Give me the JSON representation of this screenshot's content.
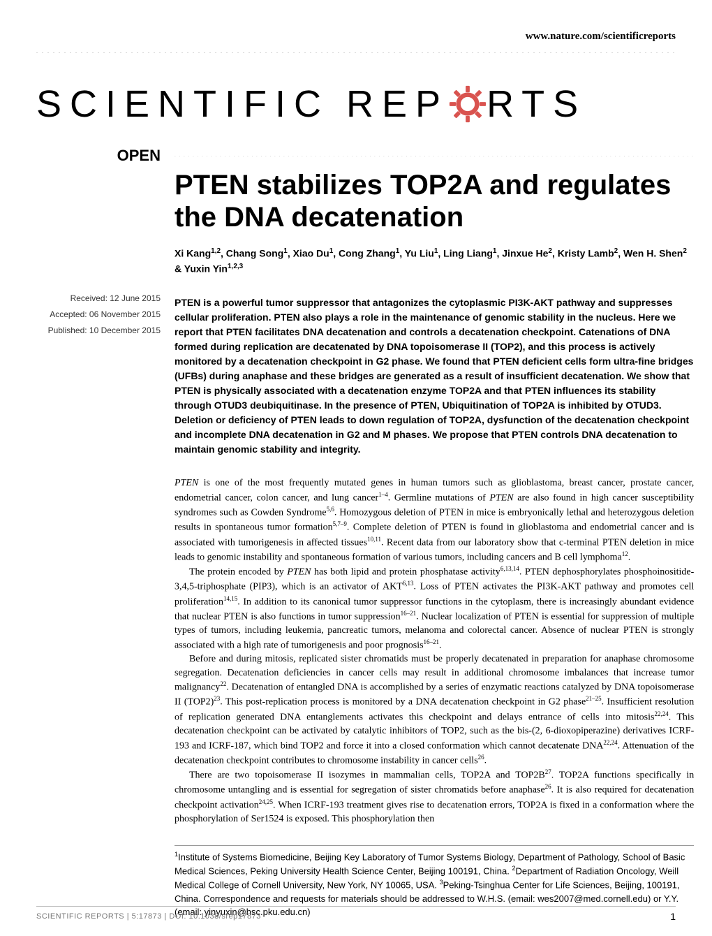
{
  "header": {
    "url": "www.nature.com/scientificreports"
  },
  "logo": {
    "text_before": "SCIENTIFIC",
    "text_rep": "REP",
    "text_rts": "RTS",
    "gear_color": "#d9534f",
    "gear_size": 58
  },
  "sidebar": {
    "open_label": "OPEN",
    "received": "Received: 12 June 2015",
    "accepted": "Accepted: 06 November 2015",
    "published": "Published: 10 December 2015"
  },
  "article": {
    "title": "PTEN stabilizes TOP2A and regulates the DNA decatenation",
    "authors_html": "Xi Kang<sup>1,2</sup>, Chang Song<sup>1</sup>, Xiao Du<sup>1</sup>, Cong Zhang<sup>1</sup>, Yu Liu<sup>1</sup>, Ling Liang<sup>1</sup>, Jinxue He<sup>2</sup>, Kristy Lamb<sup>2</sup>, Wen H. Shen<sup>2</sup> & Yuxin Yin<sup>1,2,3</sup>",
    "abstract": "PTEN is a powerful tumor suppressor that antagonizes the cytoplasmic PI3K-AKT pathway and suppresses cellular proliferation. PTEN also plays a role in the maintenance of genomic stability in the nucleus. Here we report that PTEN facilitates DNA decatenation and controls a decatenation checkpoint. Catenations of DNA formed during replication are decatenated by DNA topoisomerase II (TOP2), and this process is actively monitored by a decatenation checkpoint in G2 phase. We found that PTEN deficient cells form ultra-fine bridges (UFBs) during anaphase and these bridges are generated as a result of insufficient decatenation. We show that PTEN is physically associated with a decatenation enzyme TOP2A and that PTEN influences its stability through OTUD3 deubiquitinase. In the presence of PTEN, Ubiquitination of TOP2A is inhibited by OTUD3. Deletion or deficiency of PTEN leads to down regulation of TOP2A, dysfunction of the decatenation checkpoint and incomplete DNA decatenation in G2 and M phases. We propose that PTEN controls DNA decatenation to maintain genomic stability and integrity.",
    "body_p1_html": "<i>PTEN</i> is one of the most frequently mutated genes in human tumors such as glioblastoma, breast cancer, prostate cancer, endometrial cancer, colon cancer, and lung cancer<sup>1–4</sup>. Germline mutations of <i>PTEN</i> are also found in high cancer susceptibility syndromes such as Cowden Syndrome<sup>5,6</sup>. Homozygous deletion of PTEN in mice is embryonically lethal and heterozygous deletion results in spontaneous tumor formation<sup>5,7–9</sup>. Complete deletion of PTEN is found in glioblastoma and endometrial cancer and is associated with tumorigenesis in affected tissues<sup>10,11</sup>. Recent data from our laboratory show that c-terminal PTEN deletion in mice leads to genomic instability and spontaneous formation of various tumors, including cancers and B cell lymphoma<sup>12</sup>.",
    "body_p2_html": "The protein encoded by <i>PTEN</i> has both lipid and protein phosphatase activity<sup>6,13,14</sup>. PTEN dephosphorylates phosphoinositide-3,4,5-triphosphate (PIP3), which is an activator of AKT<sup>6,13</sup>. Loss of PTEN activates the PI3K-AKT pathway and promotes cell proliferation<sup>14,15</sup>. In addition to its canonical tumor suppressor functions in the cytoplasm, there is increasingly abundant evidence that nuclear PTEN is also functions in tumor suppression<sup>16–21</sup>. Nuclear localization of PTEN is essential for suppression of multiple types of tumors, including leukemia, pancreatic tumors, melanoma and colorectal cancer. Absence of nuclear PTEN is strongly associated with a high rate of tumorigenesis and poor prognosis<sup>16–21</sup>.",
    "body_p3_html": "Before and during mitosis, replicated sister chromatids must be properly decatenated in preparation for anaphase chromosome segregation. Decatenation deficiencies in cancer cells may result in additional chromosome imbalances that increase tumor malignancy<sup>22</sup>. Decatenation of entangled DNA is accomplished by a series of enzymatic reactions catalyzed by DNA topoisomerase II (TOP2)<sup>23</sup>. This post-replication process is monitored by a DNA decatenation checkpoint in G2 phase<sup>21–25</sup>. Insufficient resolution of replication generated DNA entanglements activates this checkpoint and delays entrance of cells into mitosis<sup>22,24</sup>. This decatenation checkpoint can be activated by catalytic inhibitors of TOP2, such as the bis-(2, 6-dioxopiperazine) derivatives ICRF-193 and ICRF-187, which bind TOP2 and force it into a closed conformation which cannot decatenate DNA<sup>22,24</sup>. Attenuation of the decatenation checkpoint contributes to chromosome instability in cancer cells<sup>26</sup>.",
    "body_p4_html": "There are two topoisomerase II isozymes in mammalian cells, TOP2A and TOP2B<sup>27</sup>. TOP2A functions specifically in chromosome untangling and is essential for segregation of sister chromatids before anaphase<sup>26</sup>. It is also required for decatenation checkpoint activation<sup>24,25</sup>. When ICRF-193 treatment gives rise to decatenation errors, TOP2A is fixed in a conformation where the phosphorylation of Ser1524 is exposed. This phosphorylation then",
    "affiliations_html": "<sup>1</sup>Institute of Systems Biomedicine, Beijing Key Laboratory of Tumor Systems Biology, Department of Pathology, School of Basic Medical Sciences, Peking University Health Science Center, Beijing 100191, China. <sup>2</sup>Department of Radiation Oncology, Weill Medical College of Cornell University, New York, NY 10065, USA. <sup>3</sup>Peking-Tsinghua Center for Life Sciences, Beijing, 100191, China. Correspondence and requests for materials should be addressed to W.H.S. (email: wes2007@med.cornell.edu) or Y.Y. (email: yinyuxin@hsc.pku.edu.cn)"
  },
  "footer": {
    "citation": "SCIENTIFIC REPORTS | 5:17873 | DOI: 10.1038/srep17873",
    "page_num": "1"
  },
  "colors": {
    "text": "#000000",
    "muted": "#777777",
    "line": "#bbbbbb",
    "accent": "#d9534f"
  }
}
